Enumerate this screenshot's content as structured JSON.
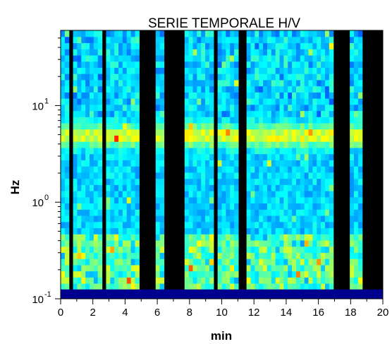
{
  "chart_data": {
    "type": "heatmap",
    "title": "SERIE TEMPORALE H/V",
    "xlabel": "min",
    "ylabel": "Hz",
    "x_ticks": [
      "0",
      "2",
      "4",
      "6",
      "8",
      "10",
      "12",
      "14",
      "16",
      "18",
      "20"
    ],
    "xlim": [
      0,
      20
    ],
    "y_scale": "log",
    "ylim": [
      0.1,
      60
    ],
    "y_ticks": [
      {
        "value": 0.1,
        "base": "10",
        "exp": "-1"
      },
      {
        "value": 1,
        "base": "10",
        "exp": "0"
      },
      {
        "value": 10,
        "base": "10",
        "exp": "1"
      }
    ],
    "colormap": "jet",
    "background_color": "#000000",
    "missing_segments_min": [
      [
        0.45,
        0.85
      ],
      [
        2.5,
        2.85
      ],
      [
        4.95,
        5.8
      ],
      [
        6.5,
        7.75
      ],
      [
        9.5,
        9.85
      ],
      [
        11.15,
        11.6
      ],
      [
        17.0,
        17.95
      ],
      [
        18.6,
        20.0
      ]
    ],
    "peak_band_hz": [
      4.0,
      6.0
    ],
    "bottom_band": {
      "range_hz": [
        0.1,
        0.125
      ],
      "color": "#00008f"
    }
  }
}
